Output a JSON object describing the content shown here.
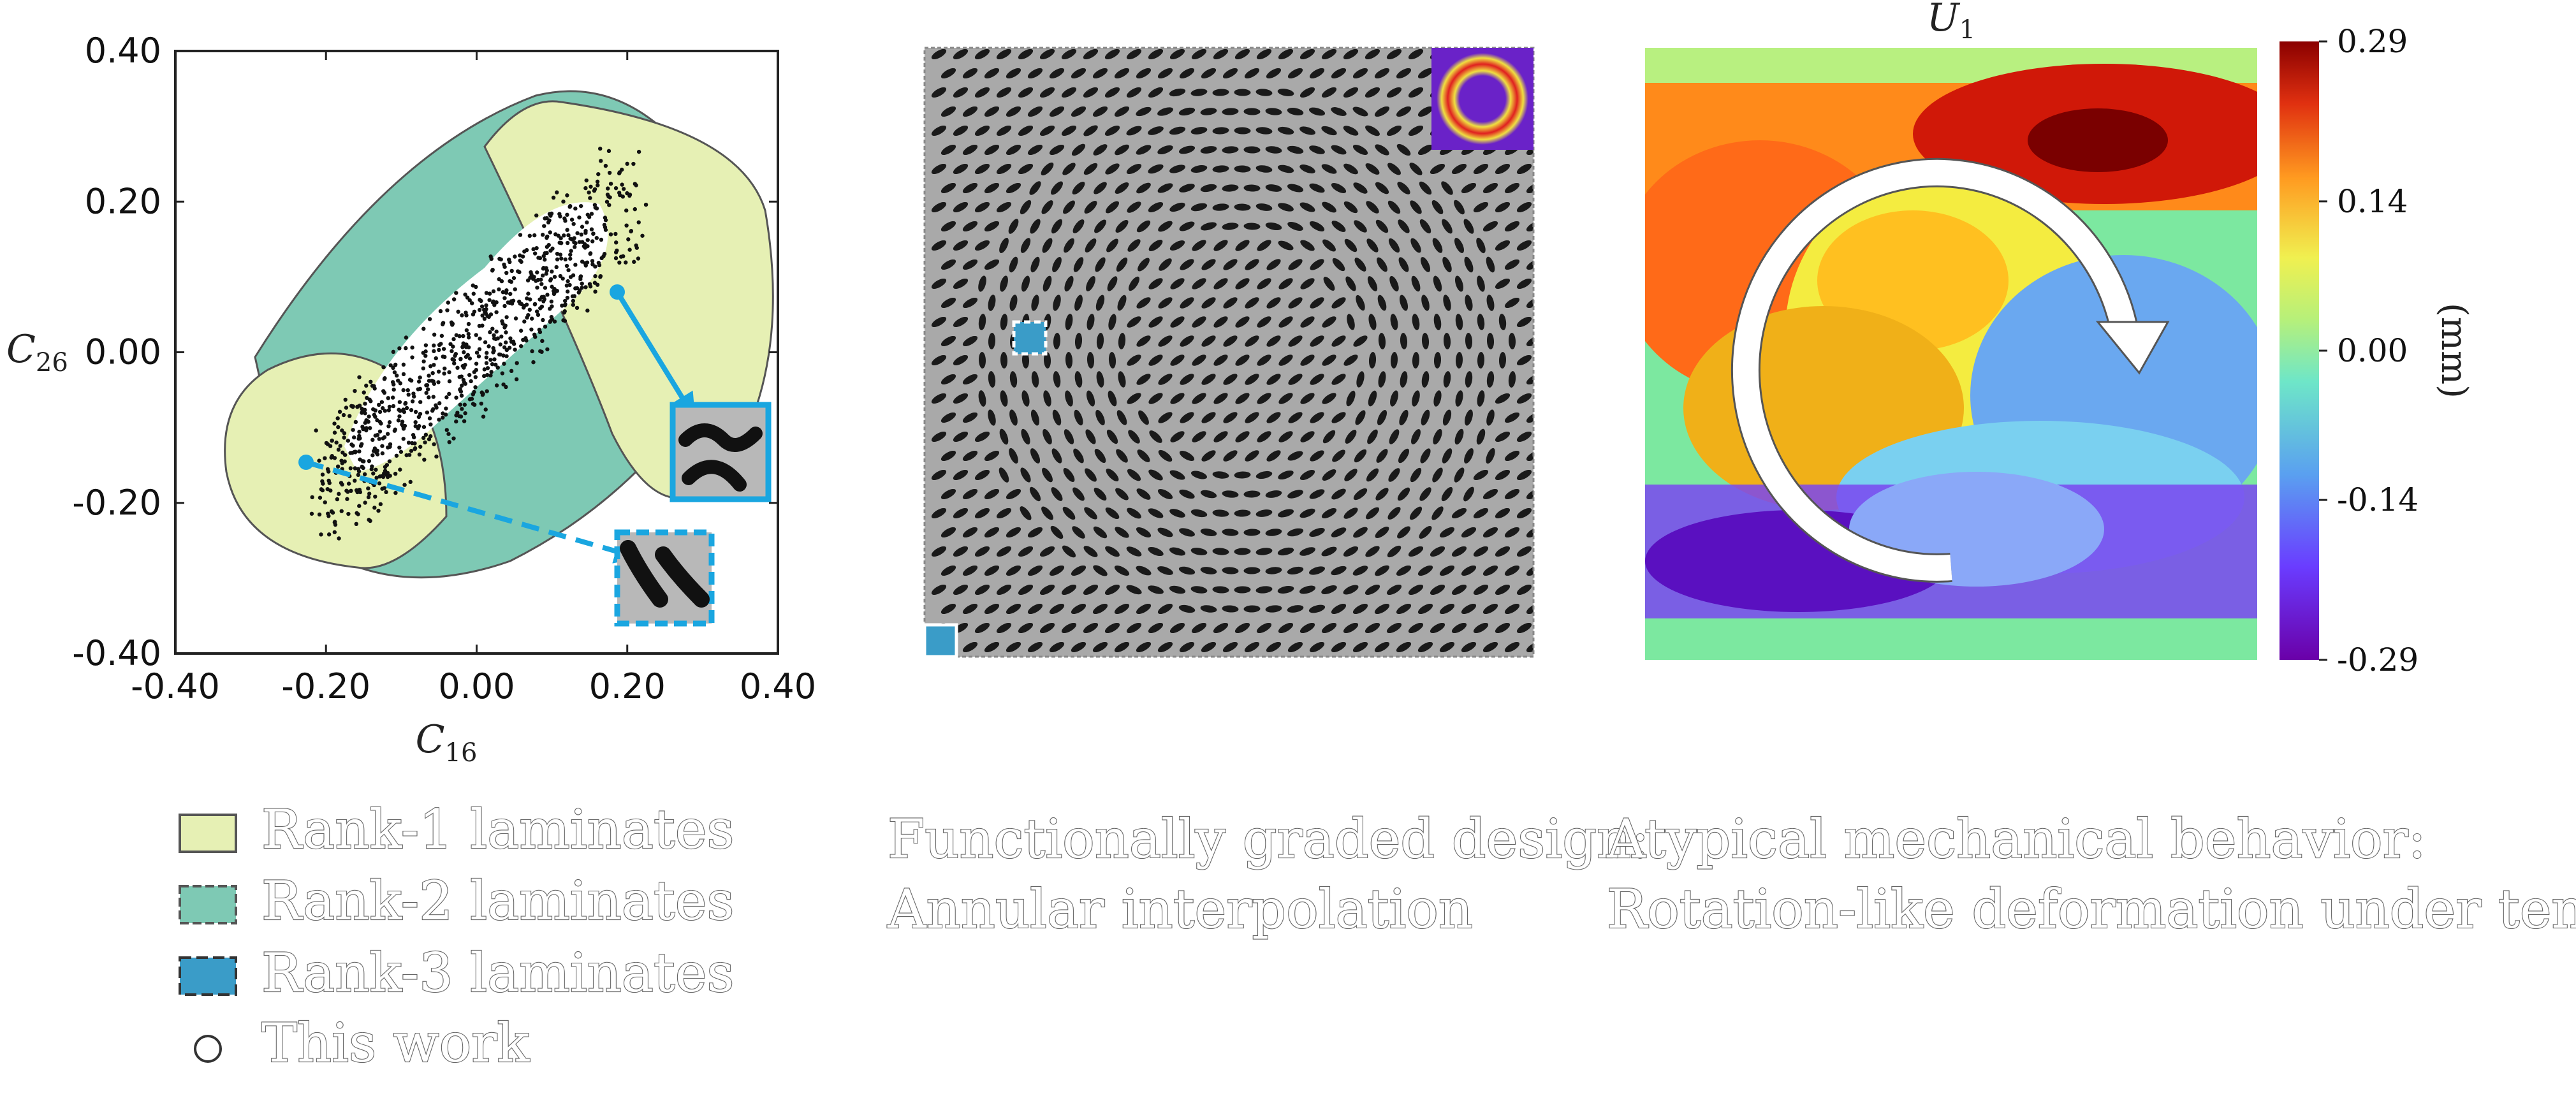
{
  "chart_data": [
    {
      "type": "scatter",
      "xlabel": "C",
      "xlabel_sub": "16",
      "ylabel": "C",
      "ylabel_sub": "26",
      "xlim": [
        -0.4,
        0.4
      ],
      "ylim": [
        -0.4,
        0.4
      ],
      "xticks": [
        "-0.40",
        "-0.20",
        "0.00",
        "0.20",
        "0.40"
      ],
      "yticks": [
        "0.40",
        "0.20",
        "0.00",
        "-0.20",
        "-0.40"
      ],
      "legend": [
        {
          "label": "Rank-1 laminates",
          "color": "#e6f0b4"
        },
        {
          "label": "Rank-2 laminates",
          "color": "#7ec9b4"
        },
        {
          "label": "Rank-3 laminates",
          "color": "#3a9cc8"
        },
        {
          "label": "This work",
          "marker": "circle"
        }
      ],
      "legend_placement": "bottom",
      "annotations": [
        {
          "from": [
            0.2,
            0.08
          ],
          "to": [
            0.28,
            -0.12
          ],
          "style": "solid",
          "color": "#1aa6e0"
        },
        {
          "from": [
            -0.22,
            -0.15
          ],
          "to": [
            0.22,
            -0.3
          ],
          "style": "dashed",
          "color": "#1aa6e0"
        }
      ]
    },
    {
      "type": "heatmap",
      "title": "U",
      "title_sub": "1",
      "colorbar_ticks": [
        "0.29",
        "0.14",
        "0.00",
        "-0.14",
        "-0.29"
      ],
      "colorbar_values": [
        0.29,
        0.14,
        0.0,
        -0.14,
        -0.29
      ],
      "colorbar_label": "(mm)",
      "colormap": "jet"
    }
  ],
  "captions": {
    "middle_line1": "Functionally graded design:",
    "middle_line2": "Annular interpolation",
    "right_line1": "Atypical mechanical behavior:",
    "right_line2": "Rotation-like deformation under tension"
  },
  "colors": {
    "arrow_blue": "#1aa6e0",
    "pattern_gray": "#a9a9a9",
    "pattern_black": "#1a1a1a"
  }
}
